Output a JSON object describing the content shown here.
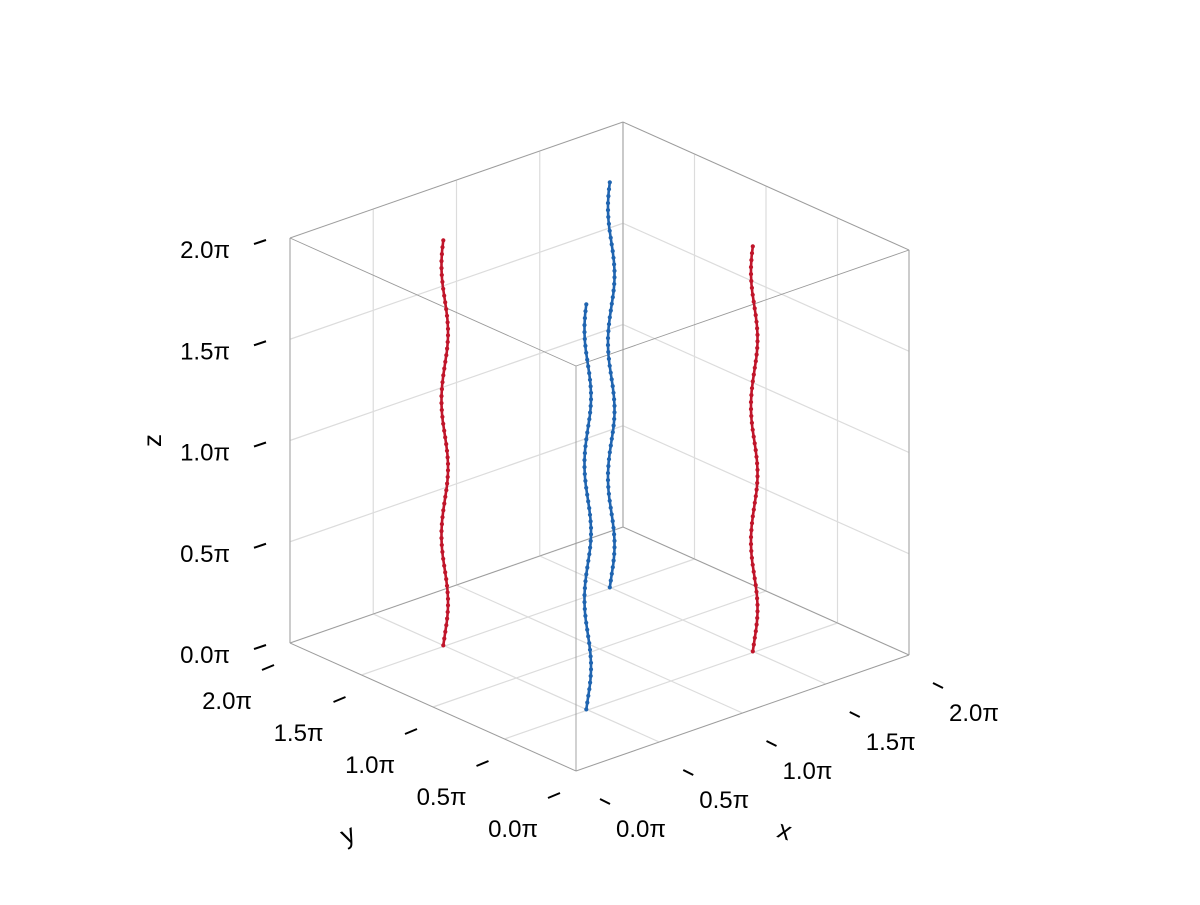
{
  "chart_data": {
    "type": "line3d",
    "xlabel": "x",
    "ylabel": "y",
    "zlabel": "z",
    "xlim": [
      0,
      2
    ],
    "ylim": [
      0,
      2
    ],
    "zlim": [
      0,
      2
    ],
    "units_note": "axis values are multiples of π",
    "x_ticks": [
      {
        "value": 0.0,
        "label": "0.0π"
      },
      {
        "value": 0.5,
        "label": "0.5π"
      },
      {
        "value": 1.0,
        "label": "1.0π"
      },
      {
        "value": 1.5,
        "label": "1.5π"
      },
      {
        "value": 2.0,
        "label": "2.0π"
      }
    ],
    "y_ticks": [
      {
        "value": 0.0,
        "label": "0.0π"
      },
      {
        "value": 0.5,
        "label": "0.5π"
      },
      {
        "value": 1.0,
        "label": "1.0π"
      },
      {
        "value": 1.5,
        "label": "1.5π"
      },
      {
        "value": 2.0,
        "label": "2.0π"
      }
    ],
    "z_ticks": [
      {
        "value": 0.0,
        "label": "0.0π"
      },
      {
        "value": 0.5,
        "label": "0.5π"
      },
      {
        "value": 1.0,
        "label": "1.0π"
      },
      {
        "value": 1.5,
        "label": "1.5π"
      },
      {
        "value": 2.0,
        "label": "2.0π"
      }
    ],
    "grid": true,
    "legend": "none",
    "series": [
      {
        "color": "#c0152a",
        "x": 0.5,
        "y": 1.5,
        "z_range": [
          0,
          2
        ],
        "wiggle": 0.012,
        "periods": 3
      },
      {
        "color": "#c0152a",
        "x": 1.5,
        "y": 0.5,
        "z_range": [
          0,
          2
        ],
        "wiggle": 0.012,
        "periods": 3
      },
      {
        "color": "#1f64b0",
        "x": 0.5,
        "y": 0.5,
        "z_range": [
          0,
          2
        ],
        "wiggle": 0.012,
        "periods": 3
      },
      {
        "color": "#1f64b0",
        "x": 1.5,
        "y": 1.5,
        "z_range": [
          0,
          2
        ],
        "wiggle": 0.012,
        "periods": 3
      }
    ]
  }
}
